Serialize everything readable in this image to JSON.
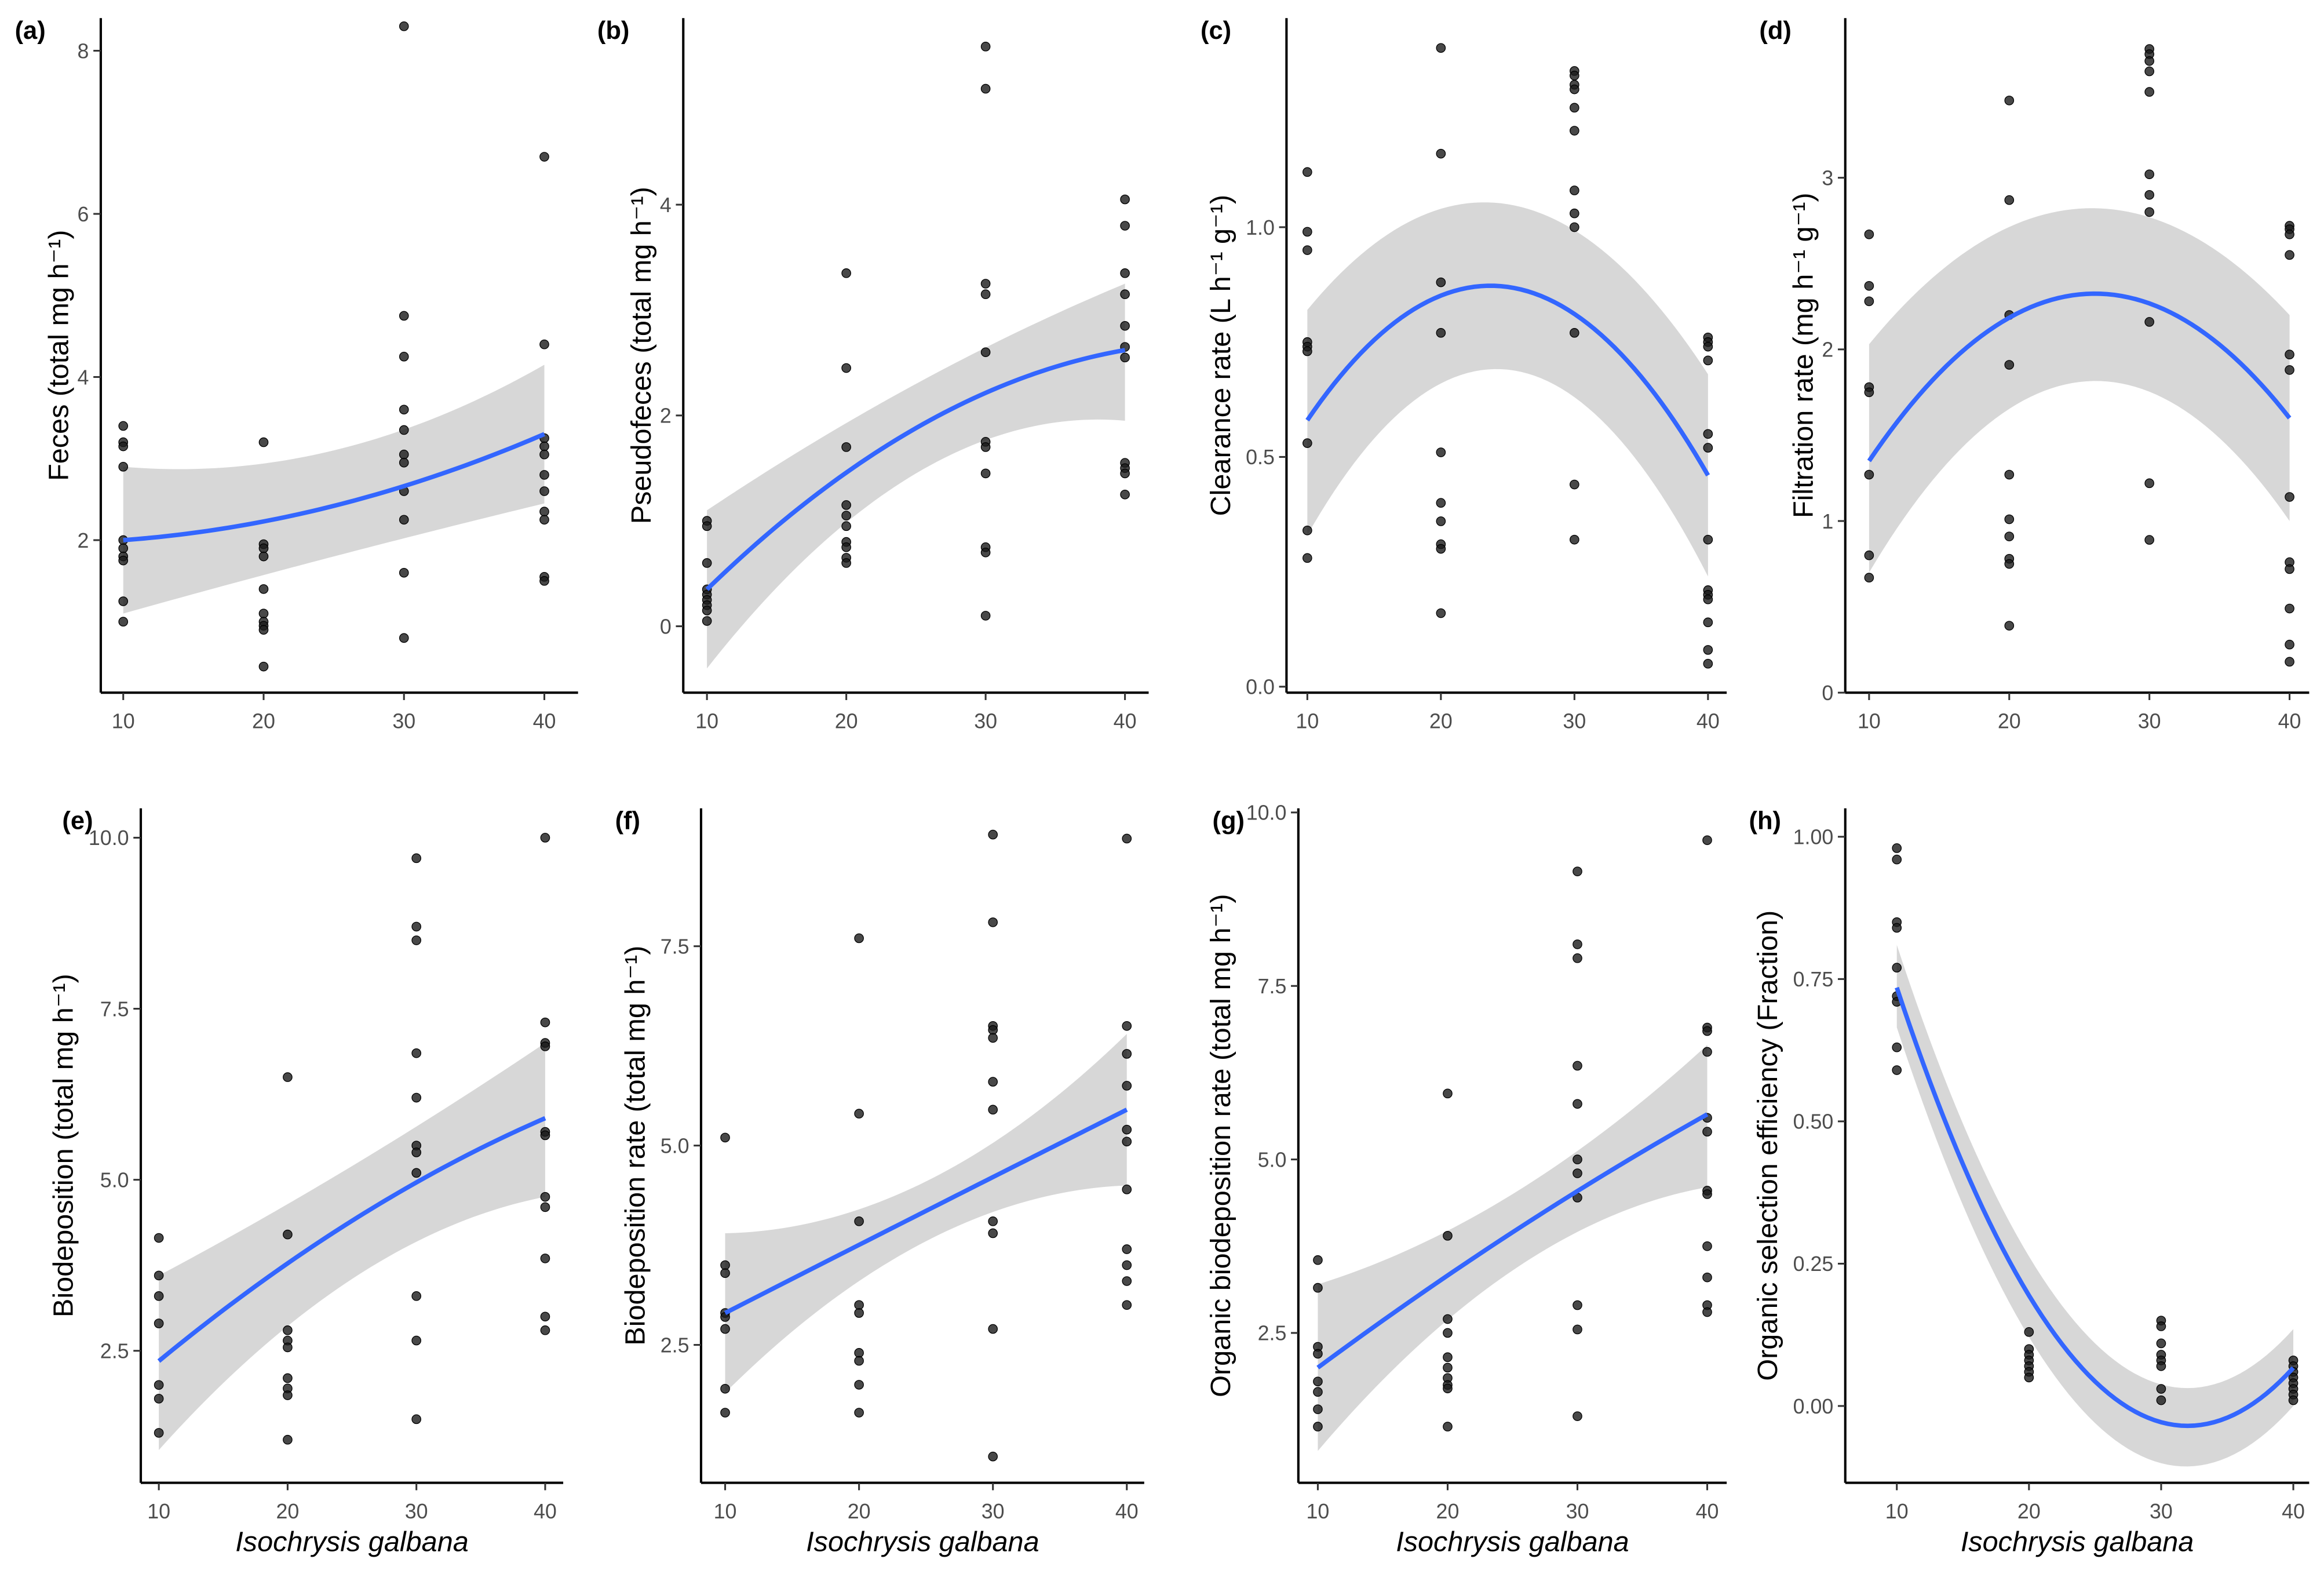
{
  "colors": {
    "fit": "#3366FF",
    "ribbon": "#D3D3D3",
    "point": "#1A1A1A",
    "axis": "#000000"
  },
  "chart_data": [
    {
      "id": "a",
      "type": "scatter",
      "panel_label": "(a)",
      "ylabel": "Feces (total mg h⁻¹)",
      "xlabel": "",
      "xlim": [
        8.4,
        42.4
      ],
      "ylim": [
        0.13,
        8.4
      ],
      "xticks": [
        "10",
        "20",
        "30",
        "40"
      ],
      "yticks": [
        "2",
        "4",
        "6",
        "8"
      ],
      "points": {
        "10": [
          3.4,
          3.2,
          3.15,
          2.9,
          2.0,
          1.9,
          1.8,
          1.75,
          1.25,
          1.0
        ],
        "20": [
          3.2,
          1.95,
          1.9,
          1.8,
          1.4,
          1.1,
          1.0,
          0.95,
          0.9,
          0.45
        ],
        "30": [
          8.3,
          4.75,
          4.25,
          3.6,
          3.35,
          3.05,
          2.95,
          2.6,
          2.25,
          1.6,
          0.8
        ],
        "40": [
          6.7,
          4.4,
          3.25,
          3.15,
          3.05,
          2.8,
          2.6,
          2.35,
          2.25,
          1.55,
          1.5
        ]
      },
      "fit": {
        "x": [
          10,
          25,
          40
        ],
        "y": [
          2.0,
          2.42,
          3.3
        ],
        "upper": [
          2.9,
          3.1,
          4.15
        ],
        "lower": [
          1.1,
          1.8,
          2.45
        ]
      }
    },
    {
      "id": "b",
      "type": "scatter",
      "panel_label": "(b)",
      "ylabel": "Pseudofeces (total mg h⁻¹)",
      "xlabel": "",
      "xlim": [
        8.3,
        41.7
      ],
      "ylim": [
        -0.63,
        5.77
      ],
      "xticks": [
        "10",
        "20",
        "30",
        "40"
      ],
      "yticks": [
        "0",
        "2",
        "4"
      ],
      "points": {
        "10": [
          1.0,
          0.95,
          0.6,
          0.35,
          0.3,
          0.25,
          0.2,
          0.15,
          0.05
        ],
        "20": [
          3.35,
          2.45,
          1.7,
          1.15,
          1.05,
          0.95,
          0.8,
          0.75,
          0.65,
          0.6
        ],
        "30": [
          5.5,
          5.1,
          3.25,
          3.15,
          2.6,
          1.75,
          1.7,
          1.45,
          0.75,
          0.7,
          0.1
        ],
        "40": [
          4.05,
          3.8,
          3.35,
          3.15,
          2.85,
          2.65,
          2.55,
          1.55,
          1.5,
          1.45,
          1.25
        ]
      },
      "fit": {
        "x": [
          10,
          25,
          40
        ],
        "y": [
          0.35,
          1.88,
          2.62
        ],
        "upper": [
          1.1,
          2.3,
          3.25
        ],
        "lower": [
          -0.4,
          1.45,
          1.95
        ]
      }
    },
    {
      "id": "c",
      "type": "scatter",
      "panel_label": "(c)",
      "ylabel": "Clearance rate (L h⁻¹ g⁻¹)",
      "xlabel": "",
      "xlim": [
        8.44,
        41.4
      ],
      "ylim": [
        -0.013,
        1.455
      ],
      "xticks": [
        "10",
        "20",
        "30",
        "40"
      ],
      "yticks": [
        "0.0",
        "0.5",
        "1.0"
      ],
      "points": {
        "10": [
          1.12,
          0.99,
          0.95,
          0.75,
          0.74,
          0.73,
          0.53,
          0.34,
          0.28
        ],
        "20": [
          1.39,
          1.16,
          0.88,
          0.77,
          0.51,
          0.4,
          0.36,
          0.31,
          0.3,
          0.16
        ],
        "30": [
          1.34,
          1.33,
          1.31,
          1.3,
          1.26,
          1.21,
          1.08,
          1.03,
          1.0,
          0.77,
          0.44,
          0.32
        ],
        "40": [
          0.76,
          0.75,
          0.74,
          0.71,
          0.55,
          0.52,
          0.32,
          0.21,
          0.2,
          0.19,
          0.14,
          0.08,
          0.05
        ]
      },
      "fit": {
        "x": [
          10,
          25,
          40
        ],
        "y": [
          0.58,
          0.87,
          0.46
        ],
        "upper": [
          0.82,
          1.05,
          0.68
        ],
        "lower": [
          0.33,
          0.69,
          0.24
        ]
      }
    },
    {
      "id": "d",
      "type": "scatter",
      "panel_label": "(d)",
      "ylabel": "Filtration rate (mg h⁻¹ g⁻¹)",
      "xlabel": "",
      "xlim": [
        8.3,
        41.4
      ],
      "ylim": [
        0.0,
        3.93
      ],
      "xticks": [
        "10",
        "20",
        "30",
        "40"
      ],
      "yticks": [
        "0",
        "1",
        "2",
        "3"
      ],
      "points": {
        "10": [
          2.67,
          2.37,
          2.28,
          1.78,
          1.75,
          1.27,
          0.8,
          0.67
        ],
        "20": [
          3.45,
          2.87,
          2.2,
          1.91,
          1.27,
          1.01,
          0.91,
          0.78,
          0.75,
          0.39
        ],
        "30": [
          3.75,
          3.72,
          3.68,
          3.62,
          3.5,
          3.02,
          2.9,
          2.8,
          2.16,
          1.22,
          0.89
        ],
        "40": [
          2.72,
          2.7,
          2.67,
          2.55,
          1.97,
          1.88,
          1.14,
          0.76,
          0.72,
          0.49,
          0.28,
          0.18
        ]
      },
      "fit": {
        "x": [
          10,
          25,
          40
        ],
        "y": [
          1.35,
          2.32,
          1.6
        ],
        "upper": [
          2.03,
          2.82,
          2.2
        ],
        "lower": [
          0.7,
          1.81,
          1.0
        ]
      }
    },
    {
      "id": "e",
      "type": "scatter",
      "panel_label": "(e)",
      "ylabel": "Biodeposition (total mg h⁻¹)",
      "xlabel": "Isochrysis galbana",
      "xlim": [
        8.6,
        41.4
      ],
      "ylim": [
        0.57,
        10.43
      ],
      "xticks": [
        "10",
        "20",
        "30",
        "40"
      ],
      "yticks": [
        "2.5",
        "5.0",
        "7.5",
        "10.0"
      ],
      "points": {
        "10": [
          4.15,
          3.6,
          3.3,
          2.9,
          2.0,
          1.8,
          1.3
        ],
        "20": [
          6.5,
          4.2,
          2.8,
          2.65,
          2.55,
          2.1,
          1.95,
          1.85,
          1.2
        ],
        "30": [
          9.7,
          8.7,
          8.5,
          6.85,
          6.2,
          5.5,
          5.4,
          5.1,
          3.3,
          2.65,
          1.5
        ],
        "40": [
          10.0,
          7.3,
          7.0,
          6.95,
          5.7,
          5.65,
          4.75,
          4.6,
          3.85,
          3.0,
          2.8
        ]
      },
      "fit": {
        "x": [
          10,
          25,
          40
        ],
        "y": [
          2.35,
          4.4,
          5.9
        ],
        "upper": [
          3.6,
          5.2,
          7.0
        ],
        "lower": [
          1.05,
          3.55,
          4.75
        ]
      }
    },
    {
      "id": "f",
      "type": "scatter",
      "panel_label": "(f)",
      "ylabel": "Biodeposition rate (total mg h⁻¹)",
      "xlabel": "Isochrysis galbana",
      "xlim": [
        8.2,
        41.3
      ],
      "ylim": [
        0.77,
        9.23
      ],
      "xticks": [
        "10",
        "20",
        "30",
        "40"
      ],
      "yticks": [
        "2.5",
        "5.0",
        "7.5"
      ],
      "points": {
        "10": [
          5.1,
          3.5,
          3.4,
          2.9,
          2.85,
          2.7,
          1.95,
          1.65
        ],
        "20": [
          7.6,
          5.4,
          4.05,
          3.0,
          2.9,
          2.4,
          2.3,
          2.0,
          1.65
        ],
        "30": [
          8.9,
          7.8,
          6.5,
          6.45,
          6.35,
          5.8,
          5.45,
          4.05,
          3.9,
          2.7,
          1.1
        ],
        "40": [
          8.85,
          6.5,
          6.15,
          5.75,
          5.2,
          5.05,
          4.45,
          3.7,
          3.5,
          3.3,
          3.0
        ]
      },
      "fit": {
        "x": [
          10,
          25,
          40
        ],
        "y": [
          2.9,
          4.18,
          5.45
        ],
        "upper": [
          3.9,
          4.55,
          6.4
        ],
        "lower": [
          1.9,
          3.8,
          4.5
        ]
      }
    },
    {
      "id": "g",
      "type": "scatter",
      "panel_label": "(g)",
      "ylabel": "Organic biodeposition rate (total mg h⁻¹)",
      "xlabel": "Isochrysis galbana",
      "xlim": [
        8.5,
        41.5
      ],
      "ylim": [
        0.34,
        10.06
      ],
      "xticks": [
        "10",
        "20",
        "30",
        "40"
      ],
      "yticks": [
        "2.5",
        "5.0",
        "7.5",
        "10.0"
      ],
      "points": {
        "10": [
          3.55,
          3.15,
          2.3,
          2.2,
          1.8,
          1.65,
          1.4,
          1.15
        ],
        "20": [
          5.95,
          3.9,
          2.7,
          2.5,
          2.15,
          2.0,
          1.85,
          1.75,
          1.7,
          1.15
        ],
        "30": [
          9.15,
          8.1,
          7.9,
          6.35,
          5.8,
          5.0,
          4.8,
          4.45,
          2.9,
          2.55,
          1.3
        ],
        "40": [
          9.6,
          6.9,
          6.85,
          6.55,
          5.6,
          5.4,
          4.55,
          4.5,
          3.75,
          3.3,
          2.9,
          2.8
        ]
      },
      "fit": {
        "x": [
          10,
          25,
          40
        ],
        "y": [
          2.0,
          3.95,
          5.65
        ],
        "upper": [
          3.2,
          4.5,
          6.65
        ],
        "lower": [
          0.8,
          3.4,
          4.6
        ]
      }
    },
    {
      "id": "h",
      "type": "scatter",
      "panel_label": "(h)",
      "ylabel": "Organic selection efficiency (Fraction)",
      "xlabel": "Isochrysis galbana",
      "xlim": [
        6.1,
        41.2
      ],
      "ylim": [
        -0.135,
        1.05
      ],
      "xticks": [
        "10",
        "20",
        "30",
        "40"
      ],
      "yticks": [
        "0.00",
        "0.25",
        "0.50",
        "0.75",
        "1.00"
      ],
      "points": {
        "10": [
          0.98,
          0.96,
          0.85,
          0.84,
          0.77,
          0.72,
          0.71,
          0.63,
          0.59
        ],
        "20": [
          0.13,
          0.1,
          0.09,
          0.08,
          0.07,
          0.06,
          0.05
        ],
        "30": [
          0.15,
          0.14,
          0.11,
          0.09,
          0.08,
          0.07,
          0.03,
          0.01
        ],
        "40": [
          0.08,
          0.07,
          0.06,
          0.05,
          0.04,
          0.03,
          0.02,
          0.01
        ]
      },
      "fit": {
        "x": [
          10,
          25,
          40
        ],
        "y": [
          0.735,
          0.043,
          0.067
        ],
        "upper": [
          0.81,
          0.11,
          0.135
        ],
        "lower": [
          0.665,
          -0.03,
          0.0
        ]
      }
    }
  ]
}
